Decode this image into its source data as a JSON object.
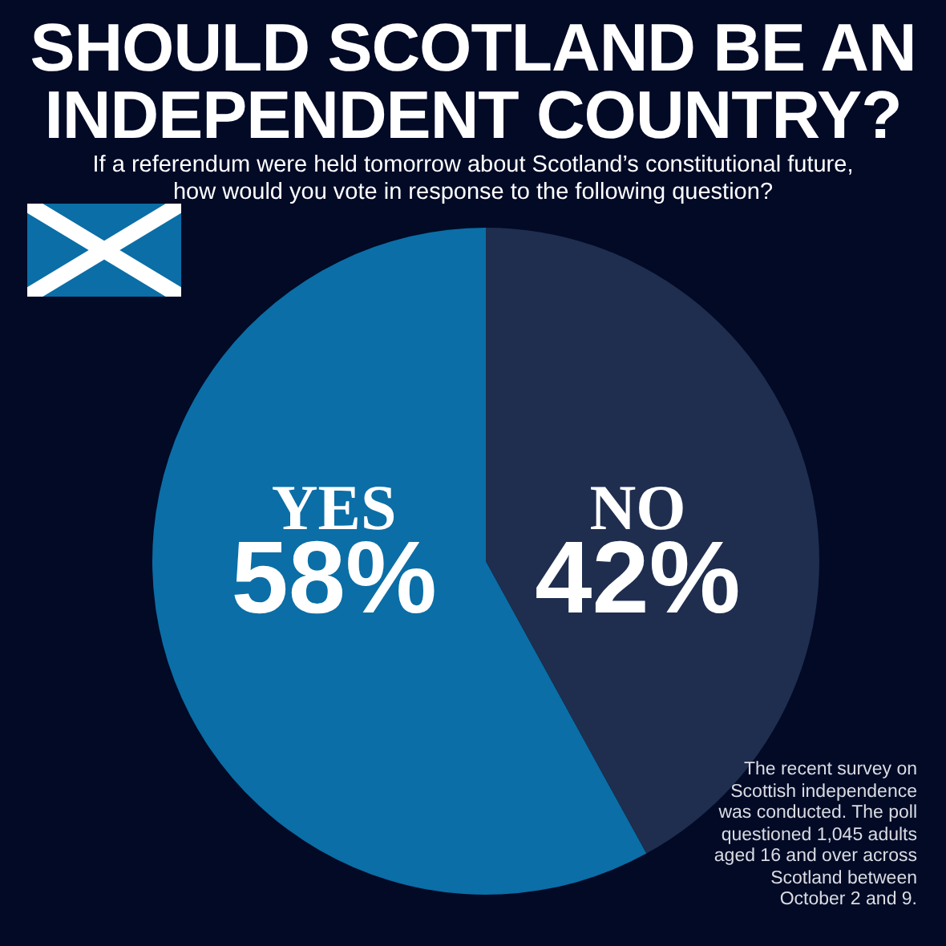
{
  "chart_data": {
    "type": "pie",
    "title": "SHOULD SCOTLAND BE AN INDEPENDENT COUNTRY?",
    "subtitle": "If a referendum were held tomorrow about Scotland’s constitutional future, how would you vote in response to the following question?",
    "categories": [
      "YES",
      "NO"
    ],
    "values": [
      58,
      42
    ],
    "colors": [
      "#0b6ea6",
      "#1f2e4f"
    ],
    "value_labels": [
      "58%",
      "42%"
    ],
    "annotations": [
      "The recent survey on Scottish independence was conducted. The poll questioned 1,045 adults aged 16 and over across Scotland between October 2 and 9."
    ]
  }
}
